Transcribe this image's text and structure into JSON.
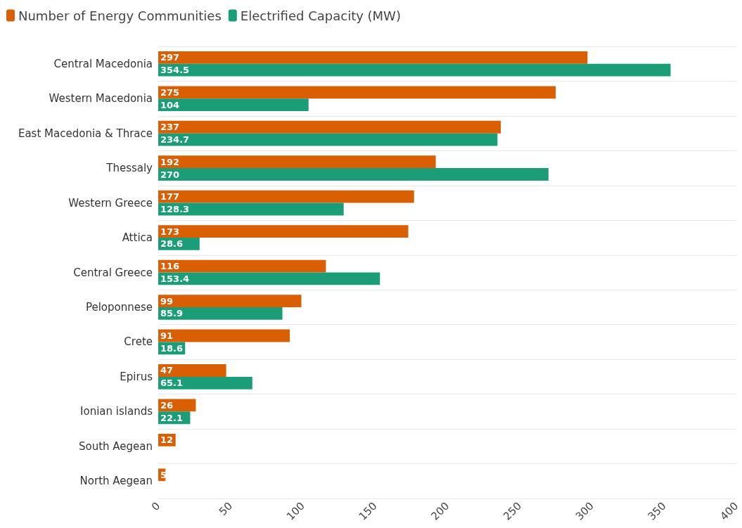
{
  "chart_data": {
    "type": "bar",
    "orientation": "horizontal",
    "categories": [
      "Central Macedonia",
      "Western Macedonia",
      "East Macedonia & Thrace",
      "Thessaly",
      "Western Greece",
      "Attica",
      "Central Greece",
      "Peloponnese",
      "Crete",
      "Epirus",
      "Ionian islands",
      "South Aegean",
      "North Aegean"
    ],
    "series": [
      {
        "name": "Number of Energy Communities",
        "color": "#d95f02",
        "values": [
          297,
          275,
          237,
          192,
          177,
          173,
          116,
          99,
          91,
          47,
          26,
          12,
          5
        ]
      },
      {
        "name": "Electrified Capacity (MW)",
        "color": "#1b9e77",
        "values": [
          354.5,
          104,
          234.7,
          270,
          128.3,
          28.6,
          153.4,
          85.9,
          18.6,
          65.1,
          22.1,
          null,
          null
        ]
      }
    ],
    "xlim": [
      0,
      400
    ],
    "xticks": [
      0,
      50,
      100,
      150,
      200,
      250,
      300,
      350,
      400
    ],
    "grid": "y",
    "legend": "top left",
    "data_labels": true
  }
}
